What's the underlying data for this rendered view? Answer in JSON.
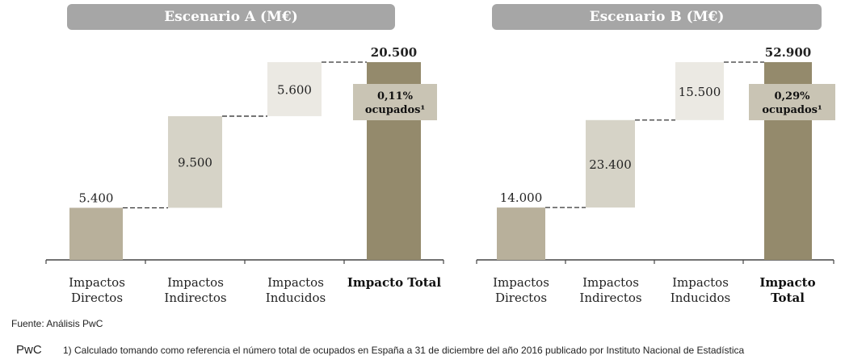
{
  "chart_data": [
    {
      "type": "waterfall",
      "title": "Escenario A (M€)",
      "categories": [
        "Impactos Directos",
        "Impactos Indirectos",
        "Impactos Inducidos",
        "Impacto Total"
      ],
      "values": [
        5400,
        9500,
        5600,
        20500
      ],
      "labels": [
        "5.400",
        "9.500",
        "5.600",
        "20.500"
      ],
      "total_index": 3,
      "annotation": {
        "line1": "0,11%",
        "line2": "ocupados¹"
      },
      "ylim": [
        0,
        20500
      ]
    },
    {
      "type": "waterfall",
      "title": "Escenario B (M€)",
      "categories": [
        "Impactos Directos",
        "Impactos Indirectos",
        "Impactos Inducidos",
        "Impacto Total"
      ],
      "values": [
        14000,
        23400,
        15500,
        52900
      ],
      "labels": [
        "14.000",
        "23.400",
        "15.500",
        "52.900"
      ],
      "total_index": 3,
      "annotation": {
        "line1": "0,29%",
        "line2": "ocupados¹"
      },
      "ylim": [
        0,
        52900
      ]
    }
  ],
  "labels": {
    "a_cats": [
      [
        "Impactos",
        "Directos"
      ],
      [
        "Impactos",
        "Indirectos"
      ],
      [
        "Impactos",
        "Inducidos"
      ],
      [
        "Impacto Total"
      ]
    ],
    "b_cats": [
      [
        "Impactos",
        "Directos"
      ],
      [
        "Impactos",
        "Indirectos"
      ],
      [
        "Impactos",
        "Inducidos"
      ],
      [
        "Impacto",
        "Total"
      ]
    ]
  },
  "colors": {
    "direct": "#b8b09b",
    "indirect": "#d6d3c7",
    "induced": "#ebe9e3",
    "total": "#948a6c",
    "annotation_box": "#c9c4b4",
    "axis": "#444444"
  },
  "footer": {
    "source": "Fuente: Análisis PwC",
    "logo": "PwC",
    "footnote": "1) Calculado tomando como referencia el número total de ocupados en España a 31 de diciembre del año 2016 publicado por Instituto Nacional de Estadística"
  }
}
